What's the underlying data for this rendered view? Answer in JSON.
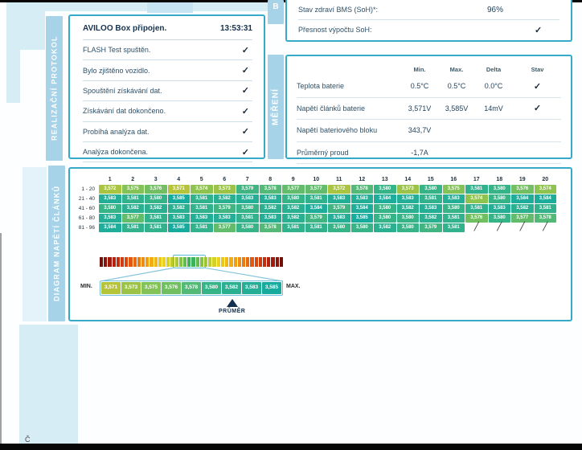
{
  "page": {
    "accent_teal": "#37a9c8",
    "band_blue": "#d7edf6",
    "label_bar_blue": "#a6d3e8",
    "corner_letter": "Č"
  },
  "protocol": {
    "section_label": "REALIZAČNÍ PROTOKOL",
    "header": {
      "label": "AVILOO Box připojen.",
      "time": "13:53:31"
    },
    "items": [
      {
        "label": "FLASH Test spuštěn.",
        "check": "✓"
      },
      {
        "label": "Bylo zjištěno vozidlo.",
        "check": "✓"
      },
      {
        "label": "Spouštění získávání dat.",
        "check": "✓"
      },
      {
        "label": "Získávání dat dokončeno.",
        "check": "✓"
      },
      {
        "label": "Probíhá analýza dat.",
        "check": "✓"
      },
      {
        "label": "Analýza dokončena.",
        "check": "✓"
      }
    ]
  },
  "soh": {
    "section_label_stub": "B",
    "rows": [
      {
        "label": "Stav zdraví BMS (SoH)*:",
        "value": "96%"
      },
      {
        "label": "Přesnost výpočtu SoH:",
        "value": "✓"
      }
    ]
  },
  "mereni": {
    "section_label": "MĚŘENÍ",
    "columns": [
      "Min.",
      "Max.",
      "Delta",
      "Stav"
    ],
    "rows": [
      {
        "label": "Teplota baterie",
        "min": "0.5°C",
        "max": "0.5°C",
        "delta": "0.0°C",
        "stav": "✓"
      },
      {
        "label": "Napětí článků baterie",
        "min": "3,571V",
        "max": "3,585V",
        "delta": "14mV",
        "stav": "✓"
      },
      {
        "label": "Napětí bateriového bloku",
        "min": "343,7V",
        "max": "",
        "delta": "",
        "stav": ""
      },
      {
        "label": "Průměrný proud",
        "min": "-1,7A",
        "max": "",
        "delta": "",
        "stav": ""
      }
    ]
  },
  "diagram": {
    "section_label": "DIAGRAM NAPĚTÍ ČLÁNKŮ",
    "col_headers": [
      "1",
      "2",
      "3",
      "4",
      "5",
      "6",
      "7",
      "8",
      "9",
      "10",
      "11",
      "12",
      "13",
      "14",
      "15",
      "16",
      "17",
      "18",
      "19",
      "20"
    ],
    "rows": [
      {
        "label": "1 - 20",
        "values": [
          "3,572",
          "3,575",
          "3,576",
          "3,571",
          "3,574",
          "3,573",
          "3,579",
          "3,578",
          "3,577",
          "3,577",
          "3,572",
          "3,578",
          "3,580",
          "3,573",
          "3,580",
          "3,575",
          "3,581",
          "3,580",
          "3,576",
          "3,574"
        ],
        "missing": 0
      },
      {
        "label": "21 - 40",
        "values": [
          "3,583",
          "3,581",
          "3,580",
          "3,585",
          "3,581",
          "3,582",
          "3,583",
          "3,583",
          "3,580",
          "3,581",
          "3,583",
          "3,583",
          "3,584",
          "3,583",
          "3,581",
          "3,583",
          "3,574",
          "3,580",
          "3,584",
          "3,584"
        ],
        "missing": 0
      },
      {
        "label": "41 - 60",
        "values": [
          "3,580",
          "3,582",
          "3,582",
          "3,582",
          "3,581",
          "3,579",
          "3,580",
          "3,582",
          "3,582",
          "3,584",
          "3,579",
          "3,584",
          "3,580",
          "3,582",
          "3,583",
          "3,580",
          "3,581",
          "3,583",
          "3,582",
          "3,581"
        ],
        "missing": 0
      },
      {
        "label": "61 - 80",
        "values": [
          "3,583",
          "3,577",
          "3,581",
          "3,583",
          "3,583",
          "3,583",
          "3,581",
          "3,583",
          "3,582",
          "3,579",
          "3,583",
          "3,585",
          "3,580",
          "3,580",
          "3,582",
          "3,581",
          "3,576",
          "3,580",
          "3,577",
          "3,578"
        ],
        "missing": 0
      },
      {
        "label": "81 - 96",
        "values": [
          "3,584",
          "3,581",
          "3,581",
          "3,585",
          "3,581",
          "3,577",
          "3,580",
          "3,578",
          "3,581",
          "3,581",
          "3,580",
          "3,580",
          "3,582",
          "3,580",
          "3,579",
          "3,581"
        ],
        "missing": 4
      }
    ],
    "missing_mark": "╱",
    "value_range": [
      3.571,
      3.585
    ],
    "value_color_stops": [
      {
        "t": 0,
        "c": "#b6c43a"
      },
      {
        "t": 0.3,
        "c": "#7fc258"
      },
      {
        "t": 0.6,
        "c": "#3bb485"
      },
      {
        "t": 1,
        "c": "#17ab9e"
      }
    ],
    "scale_bar": {
      "square_count": 44,
      "highlight_range": [
        18,
        24
      ],
      "stops": [
        {
          "t": 0,
          "c": "#701109"
        },
        {
          "t": 0.12,
          "c": "#b01d0d"
        },
        {
          "t": 0.3,
          "c": "#e04e10"
        },
        {
          "t": 0.5,
          "c": "#f09c12"
        },
        {
          "t": 0.7,
          "c": "#ecd31c"
        },
        {
          "t": 0.85,
          "c": "#9fc93b"
        },
        {
          "t": 1,
          "c": "#2bae60"
        }
      ]
    },
    "scale": {
      "min_label": "MIN.",
      "max_label": "MAX.",
      "cells": [
        "3,571",
        "3,573",
        "3,575",
        "3,576",
        "3,578",
        "3,580",
        "3,582",
        "3,583",
        "3,585"
      ],
      "avg_label": "PRŮMĚR",
      "avg_index": 6
    }
  }
}
